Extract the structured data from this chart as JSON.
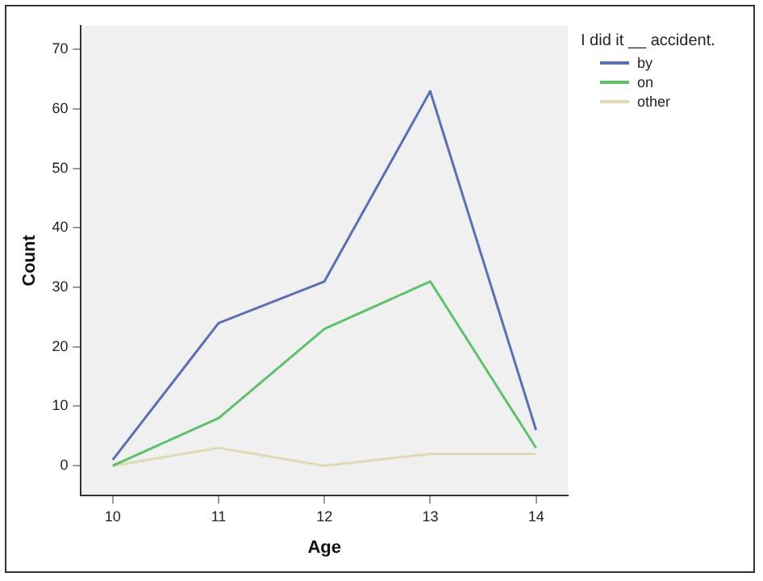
{
  "chart_data": {
    "type": "line",
    "xlabel": "Age",
    "ylabel": "Count",
    "legend_title": "I did it __ accident.",
    "x": [
      10,
      11,
      12,
      13,
      14
    ],
    "series": [
      {
        "name": "by",
        "color": "#5a6fb5",
        "values": [
          1,
          24,
          31,
          63,
          6
        ]
      },
      {
        "name": "on",
        "color": "#5cc26a",
        "values": [
          0,
          8,
          23,
          31,
          3
        ]
      },
      {
        "name": "other",
        "color": "#e0dab0",
        "values": [
          0,
          3,
          0,
          2,
          2
        ]
      }
    ],
    "xlim": [
      9.7,
      14.3
    ],
    "xticks": [
      10,
      11,
      12,
      13,
      14
    ],
    "ylim": [
      -5,
      74
    ],
    "yticks": [
      0,
      10,
      20,
      30,
      40,
      50,
      60,
      70
    ],
    "grid": false,
    "legend": "top right",
    "marker": "none",
    "line_style": "solid"
  }
}
